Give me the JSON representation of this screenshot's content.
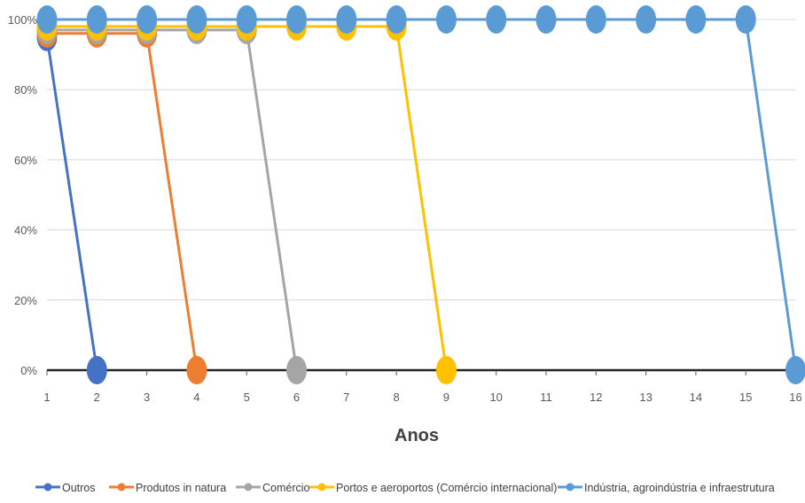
{
  "chart_data": {
    "type": "line",
    "title": "",
    "xlabel": "Anos",
    "ylabel": "",
    "x": [
      1,
      2,
      3,
      4,
      5,
      6,
      7,
      8,
      9,
      10,
      11,
      12,
      13,
      14,
      15,
      16
    ],
    "x_tick_labels": [
      "1",
      "2",
      "3",
      "4",
      "5",
      "6",
      "7",
      "8",
      "9",
      "10",
      "11",
      "12",
      "13",
      "14",
      "15",
      "16"
    ],
    "ylim": [
      0,
      100
    ],
    "y_ticks": [
      0,
      20,
      40,
      60,
      80,
      100
    ],
    "y_tick_labels": [
      "0%",
      "20%",
      "40%",
      "60%",
      "80%",
      "100%"
    ],
    "grid": true,
    "legend_position": "bottom",
    "series": [
      {
        "name": "Outros",
        "color": "#4472C4",
        "x": [
          1,
          2
        ],
        "values": [
          95,
          0
        ]
      },
      {
        "name": "Produtos in natura",
        "color": "#ED7D31",
        "x": [
          1,
          2,
          3,
          4
        ],
        "values": [
          96,
          96,
          96,
          0
        ]
      },
      {
        "name": "Comércio",
        "color": "#A5A5A5",
        "x": [
          1,
          2,
          3,
          4,
          5,
          6
        ],
        "values": [
          97,
          97,
          97,
          97,
          97,
          0
        ]
      },
      {
        "name": "Portos e aeroportos (Comércio internacional)",
        "color": "#FFC000",
        "x": [
          1,
          2,
          3,
          4,
          5,
          6,
          7,
          8,
          9
        ],
        "values": [
          98,
          98,
          98,
          98,
          98,
          98,
          98,
          98,
          0
        ]
      },
      {
        "name": "Indústria, agroindústria e infraestrutura",
        "color": "#5B9BD5",
        "x": [
          1,
          2,
          3,
          4,
          5,
          6,
          7,
          8,
          9,
          10,
          11,
          12,
          13,
          14,
          15,
          16
        ],
        "values": [
          100,
          100,
          100,
          100,
          100,
          100,
          100,
          100,
          100,
          100,
          100,
          100,
          100,
          100,
          100,
          0
        ]
      }
    ]
  }
}
